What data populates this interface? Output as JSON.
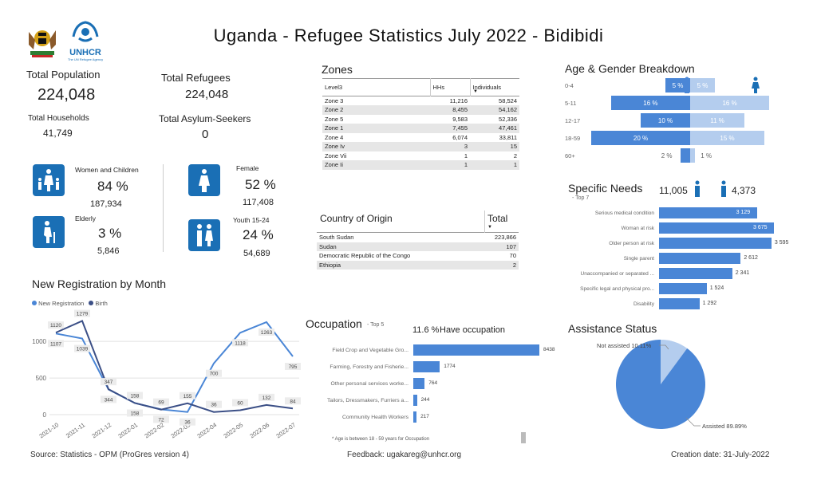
{
  "title": "Uganda - Refugee Statistics July 2022 - Bidibidi",
  "logos": {
    "unhcr": "UNHCR",
    "unhcr_sub": "The UN Refugee Agency"
  },
  "kpis": {
    "total_population_label": "Total Population",
    "total_population": "224,048",
    "total_refugees_label": "Total Refugees",
    "total_refugees": "224,048",
    "total_households_label": "Total Households",
    "total_households": "41,749",
    "total_asylum_label": "Total Asylum-Seekers",
    "total_asylum": "0"
  },
  "demographics": {
    "women_children": {
      "label": "Women and Children",
      "pct": "84 %",
      "num": "187,934"
    },
    "elderly": {
      "label": "Elderly",
      "pct": "3 %",
      "num": "5,846"
    },
    "female": {
      "label": "Female",
      "pct": "52 %",
      "num": "117,408"
    },
    "youth": {
      "label": "Youth 15-24",
      "pct": "24 %",
      "num": "54,689"
    }
  },
  "zones": {
    "title": "Zones",
    "headers": [
      "Level3",
      "HHs",
      "Individuals"
    ],
    "rows": [
      [
        "Zone 3",
        "11,216",
        "58,524"
      ],
      [
        "Zone 2",
        "8,455",
        "54,162"
      ],
      [
        "Zone 5",
        "9,583",
        "52,336"
      ],
      [
        "Zone 1",
        "7,455",
        "47,461"
      ],
      [
        "Zone 4",
        "6,074",
        "33,811"
      ],
      [
        "Zone Iv",
        "3",
        "15"
      ],
      [
        "Zone Vii",
        "1",
        "2"
      ],
      [
        "Zone Ii",
        "1",
        "1"
      ]
    ]
  },
  "origin": {
    "title": "Country of Origin",
    "total_header": "Total",
    "rows": [
      [
        "South Sudan",
        "223,866"
      ],
      [
        "Sudan",
        "107"
      ],
      [
        "Democratic Republic of the Congo",
        "70"
      ],
      [
        "Ethiopia",
        "2"
      ]
    ]
  },
  "age_gender": {
    "title": "Age & Gender Breakdown",
    "groups": [
      "0-4",
      "5-11",
      "12-17",
      "18-59",
      "60+"
    ],
    "male_pct": [
      5,
      16,
      10,
      20,
      2
    ],
    "female_pct": [
      5,
      16,
      11,
      15,
      1
    ],
    "male_labels": [
      "5 %",
      "16 %",
      "10 %",
      "20 %",
      "2 %"
    ],
    "female_labels": [
      "5 %",
      "16 %",
      "11 %",
      "15 %",
      "1 %"
    ]
  },
  "specific_needs": {
    "title": "Specific Needs",
    "subtitle": "- Top 7",
    "male_count": "11,005",
    "female_count": "4,373",
    "items": [
      {
        "label": "Serious medical condition",
        "value": 3129,
        "text": "3 129"
      },
      {
        "label": "Woman at risk",
        "value": 3675,
        "text": "3 675"
      },
      {
        "label": "Older person at risk",
        "value": 3595,
        "text": "3 595"
      },
      {
        "label": "Single parent",
        "value": 2612,
        "text": "2 612"
      },
      {
        "label": "Unaccompanied or separated ...",
        "value": 2341,
        "text": "2 341"
      },
      {
        "label": "Specific legal and physical pro...",
        "value": 1524,
        "text": "1 524"
      },
      {
        "label": "Disability",
        "value": 1292,
        "text": "1 292"
      }
    ]
  },
  "occupation": {
    "title": "Occupation",
    "subtitle": "- Top 5",
    "have_occupation_pct": "11.6 %",
    "have_occupation_label": "Have occupation",
    "note": "* Age is between 18 - 59 years for Occupation",
    "items": [
      {
        "label": "Field Crop and Vegetable Gro...",
        "value": 8438,
        "text": "8438"
      },
      {
        "label": "Farming, Forestry and Fisherie...",
        "value": 1774,
        "text": "1774"
      },
      {
        "label": "Other personal services worke...",
        "value": 764,
        "text": "764"
      },
      {
        "label": "Tailors, Dressmakers, Furriers a...",
        "value": 244,
        "text": "244"
      },
      {
        "label": "Community Health Workers",
        "value": 217,
        "text": "217"
      }
    ]
  },
  "assistance": {
    "title": "Assistance Status",
    "not_assisted_label": "Not assisted 10.11%",
    "assisted_label": "Assisted 89.89%",
    "assisted_pct": 89.89,
    "not_assisted_pct": 10.11
  },
  "chart_data": {
    "type": "line",
    "title": "New Registration by Month",
    "x": [
      "2021-10",
      "2021-11",
      "2021-12",
      "2022-01",
      "2022-02",
      "2022-03",
      "2022-04",
      "2022-05",
      "2022-06",
      "2022-07"
    ],
    "series": [
      {
        "name": "New Registration",
        "values": [
          1107,
          1039,
          344,
          158,
          72,
          36,
          700,
          1118,
          1263,
          795
        ],
        "color": "#4a86d6"
      },
      {
        "name": "Birth",
        "values": [
          1120,
          1279,
          347,
          158,
          69,
          155,
          36,
          60,
          132,
          84
        ],
        "color": "#3b4f86"
      }
    ],
    "point_labels_a": [
      "1107",
      "1039",
      "344",
      "158",
      "72",
      "36",
      "700",
      "1118",
      "1263",
      "795"
    ],
    "point_labels_b": [
      "1120",
      "1279",
      "347",
      "158",
      "69",
      "155",
      "36",
      "60",
      "132",
      "84"
    ],
    "yticks": [
      0,
      500,
      1000
    ],
    "ylim": [
      0,
      1350
    ]
  },
  "footer": {
    "source": "Source: Statistics - OPM (ProGres version 4)",
    "feedback": "Feedback: ugakareg@unhcr.org",
    "creation": "Creation date: 31-July-2022"
  }
}
